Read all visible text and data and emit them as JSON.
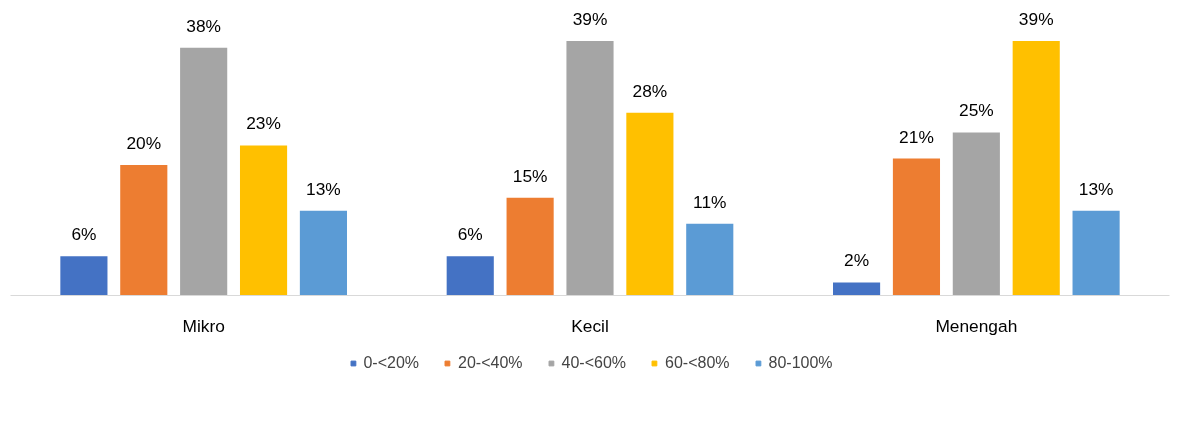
{
  "chart_data": {
    "type": "bar",
    "categories": [
      "Mikro",
      "Kecil",
      "Menengah"
    ],
    "grid": false,
    "legend": "bottom",
    "series": [
      {
        "name": "0-<20%",
        "color": "#4472c4",
        "values": [
          6,
          6,
          2
        ],
        "value_labels": [
          "6%",
          "6%",
          "2%"
        ]
      },
      {
        "name": "20-<40%",
        "color": "#ed7d31",
        "values": [
          20,
          15,
          21
        ],
        "value_labels": [
          "20%",
          "15%",
          "21%"
        ]
      },
      {
        "name": "40-<60%",
        "color": "#a5a5a5",
        "values": [
          38,
          39,
          25
        ],
        "value_labels": [
          "38%",
          "39%",
          "25%"
        ]
      },
      {
        "name": "60-<80%",
        "color": "#ffc000",
        "values": [
          23,
          28,
          39
        ],
        "value_labels": [
          "23%",
          "28%",
          "39%"
        ]
      },
      {
        "name": "80-100%",
        "color": "#5b9bd5",
        "values": [
          13,
          11,
          13
        ],
        "value_labels": [
          "13%",
          "11%",
          "13%"
        ]
      }
    ]
  }
}
